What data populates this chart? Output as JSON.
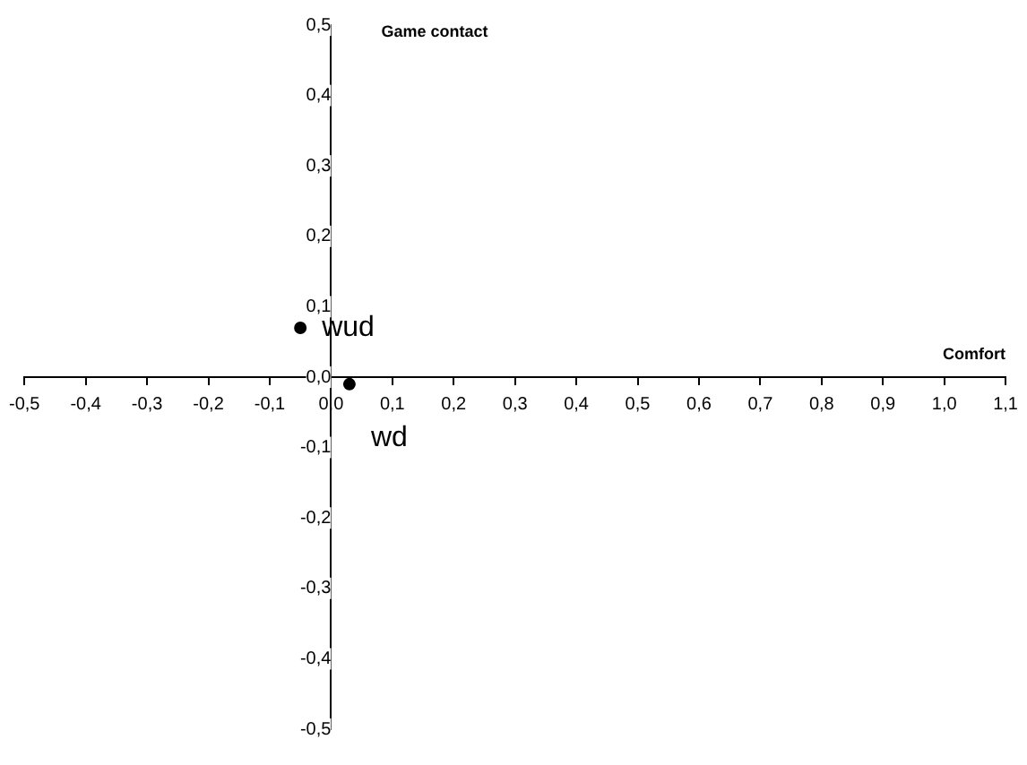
{
  "chart_data": {
    "type": "scatter",
    "xlabel": "Comfort",
    "ylabel": "Game contact",
    "series": [
      {
        "name": "wud",
        "color": "#000000",
        "x": [
          -0.05
        ],
        "values": [
          0.07
        ]
      },
      {
        "name": "wd",
        "color": "#000000",
        "x": [
          0.03
        ],
        "values": [
          -0.01
        ]
      }
    ],
    "xlim": [
      -0.5,
      1.1
    ],
    "ylim": [
      -0.5,
      0.5
    ],
    "xticks": [
      {
        "value": -0.5,
        "label": "-0,5"
      },
      {
        "value": -0.4,
        "label": "-0,4"
      },
      {
        "value": -0.3,
        "label": "-0,3"
      },
      {
        "value": -0.2,
        "label": "-0,2"
      },
      {
        "value": -0.1,
        "label": "-0,1"
      },
      {
        "value": 0,
        "label": "0,0"
      },
      {
        "value": 0.1,
        "label": "0,1"
      },
      {
        "value": 0.2,
        "label": "0,2"
      },
      {
        "value": 0.3,
        "label": "0,3"
      },
      {
        "value": 0.4,
        "label": "0,4"
      },
      {
        "value": 0.5,
        "label": "0,5"
      },
      {
        "value": 0.6,
        "label": "0,6"
      },
      {
        "value": 0.7,
        "label": "0,7"
      },
      {
        "value": 0.8,
        "label": "0,8"
      },
      {
        "value": 0.9,
        "label": "0,9"
      },
      {
        "value": 1.0,
        "label": "1,0"
      },
      {
        "value": 1.1,
        "label": "1,1"
      }
    ],
    "yticks": [
      {
        "value": -0.5,
        "label": "-0,5"
      },
      {
        "value": -0.4,
        "label": "-0,4"
      },
      {
        "value": -0.3,
        "label": "-0,3"
      },
      {
        "value": -0.2,
        "label": "-0,2"
      },
      {
        "value": -0.1,
        "label": "-0,1"
      },
      {
        "value": 0,
        "label": "0,0"
      },
      {
        "value": 0.1,
        "label": "0,1"
      },
      {
        "value": 0.2,
        "label": "0,2"
      },
      {
        "value": 0.3,
        "label": "0,3"
      },
      {
        "value": 0.4,
        "label": "0,4"
      },
      {
        "value": 0.5,
        "label": "0,5"
      }
    ],
    "grid": false,
    "legend": false,
    "marker": "circle"
  }
}
